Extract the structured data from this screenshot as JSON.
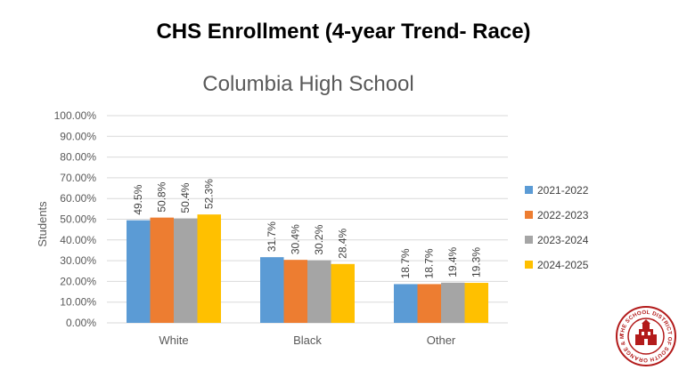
{
  "slide_title": "CHS Enrollment (4-year Trend- Race)",
  "chart_data": {
    "type": "bar",
    "title": "Columbia High School",
    "ylabel": "Students",
    "xlabel": "",
    "ylim": [
      0,
      100
    ],
    "yticks": [
      "0.00%",
      "10.00%",
      "20.00%",
      "30.00%",
      "40.00%",
      "50.00%",
      "60.00%",
      "70.00%",
      "80.00%",
      "90.00%",
      "100.00%"
    ],
    "categories": [
      "White",
      "Black",
      "Other"
    ],
    "series": [
      {
        "name": "2021-2022",
        "color": "#5b9bd5",
        "values": [
          49.5,
          31.7,
          18.7
        ],
        "labels": [
          "49.5%",
          "31.7%",
          "18.7%"
        ]
      },
      {
        "name": "2022-2023",
        "color": "#ed7d31",
        "values": [
          50.8,
          30.4,
          18.7
        ],
        "labels": [
          "50.8%",
          "30.4%",
          "18.7%"
        ]
      },
      {
        "name": "2023-2024",
        "color": "#a5a5a5",
        "values": [
          50.4,
          30.2,
          19.4
        ],
        "labels": [
          "50.4%",
          "30.2%",
          "19.4%"
        ]
      },
      {
        "name": "2024-2025",
        "color": "#ffc000",
        "values": [
          52.3,
          28.4,
          19.3
        ],
        "labels": [
          "52.3%",
          "28.4%",
          "19.3%"
        ]
      }
    ],
    "grid": true,
    "legend": "right"
  },
  "logo": {
    "icon": "school-district-seal-icon",
    "accent": "#b31b1b",
    "text": "THE SCHOOL DISTRICT OF SOUTH ORANGE & MAPLEWOOD"
  }
}
